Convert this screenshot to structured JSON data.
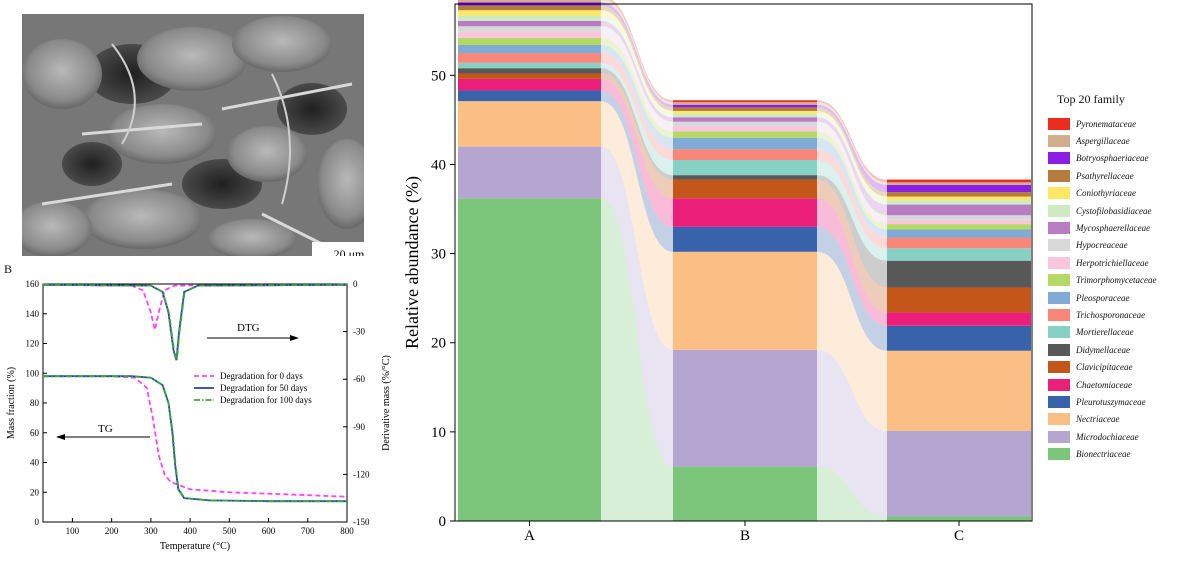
{
  "panel_b_tag": "B",
  "micrograph": {
    "scale_label": "20 μm"
  },
  "chart_data": [
    {
      "type": "line",
      "panel": "B",
      "xlabel": "Temperature (°C)",
      "ylabel": "Mass fraction (%)",
      "y2label": "Derivative mass (%/°C)",
      "xlim": [
        25,
        800
      ],
      "ylim": [
        0,
        160
      ],
      "y2lim": [
        -150,
        0
      ],
      "xticks": [
        100,
        200,
        300,
        400,
        500,
        600,
        700,
        800
      ],
      "yticks": [
        0,
        20,
        40,
        60,
        80,
        100,
        120,
        140,
        160
      ],
      "y2ticks": [
        0,
        -30,
        -60,
        -90,
        -120,
        -150
      ],
      "annotations": [
        {
          "text": "DTG",
          "arrow": "right"
        },
        {
          "text": "TG",
          "arrow": "left"
        }
      ],
      "legend_position": "center-right",
      "series": [
        {
          "name": "Degradation for 0 days",
          "color": "#ff44ff",
          "dash": "dashed",
          "tg": [
            [
              25,
              98
            ],
            [
              200,
              98
            ],
            [
              260,
              97
            ],
            [
              290,
              90
            ],
            [
              305,
              70
            ],
            [
              320,
              45
            ],
            [
              335,
              32
            ],
            [
              350,
              27
            ],
            [
              400,
              22
            ],
            [
              500,
              20
            ],
            [
              600,
              19
            ],
            [
              700,
              18
            ],
            [
              800,
              17
            ]
          ],
          "dtg": [
            [
              25,
              -0.5
            ],
            [
              250,
              -1
            ],
            [
              280,
              -4
            ],
            [
              300,
              -18
            ],
            [
              310,
              -29
            ],
            [
              320,
              -18
            ],
            [
              335,
              -4
            ],
            [
              360,
              -1
            ],
            [
              800,
              -0.5
            ]
          ]
        },
        {
          "name": "Degradation for 50 days",
          "color": "#2a3fb8",
          "dash": "solid",
          "tg": [
            [
              25,
              98
            ],
            [
              250,
              98
            ],
            [
              300,
              97
            ],
            [
              330,
              92
            ],
            [
              345,
              80
            ],
            [
              355,
              60
            ],
            [
              362,
              38
            ],
            [
              370,
              22
            ],
            [
              385,
              16
            ],
            [
              450,
              14.5
            ],
            [
              600,
              14
            ],
            [
              800,
              14
            ]
          ],
          "dtg": [
            [
              25,
              -0.5
            ],
            [
              300,
              -1
            ],
            [
              330,
              -5
            ],
            [
              345,
              -18
            ],
            [
              358,
              -42
            ],
            [
              365,
              -48
            ],
            [
              372,
              -30
            ],
            [
              385,
              -5
            ],
            [
              420,
              -1
            ],
            [
              800,
              -0.5
            ]
          ]
        },
        {
          "name": "Degradation for 100 days",
          "color": "#3aa63a",
          "dash": "dashdot",
          "tg": [
            [
              25,
              98
            ],
            [
              250,
              98
            ],
            [
              300,
              97
            ],
            [
              330,
              92
            ],
            [
              345,
              80
            ],
            [
              356,
              60
            ],
            [
              363,
              38
            ],
            [
              371,
              22
            ],
            [
              386,
              16
            ],
            [
              450,
              14.5
            ],
            [
              600,
              14
            ],
            [
              800,
              14
            ]
          ],
          "dtg": [
            [
              25,
              -0.5
            ],
            [
              300,
              -1
            ],
            [
              330,
              -5
            ],
            [
              346,
              -18
            ],
            [
              359,
              -42
            ],
            [
              366,
              -48
            ],
            [
              373,
              -30
            ],
            [
              386,
              -5
            ],
            [
              420,
              -1
            ],
            [
              800,
              -0.5
            ]
          ]
        }
      ]
    },
    {
      "type": "bar",
      "stacked": true,
      "ylabel": "Relative abundance (%)",
      "ylim": [
        0,
        58
      ],
      "yticks": [
        0,
        10,
        20,
        30,
        40,
        50
      ],
      "categories": [
        "A",
        "B",
        "C"
      ],
      "legend_title": "Top 20 family",
      "legend_position": "right",
      "series": [
        {
          "name": "Bionectriaceae",
          "color": "#7bc67b",
          "values": [
            36.2,
            6.1,
            0.5
          ]
        },
        {
          "name": "Microdochiaceae",
          "color": "#b5a5d1",
          "values": [
            5.8,
            13.1,
            9.6
          ]
        },
        {
          "name": "Nectriaceae",
          "color": "#fbbf85",
          "values": [
            5.1,
            11.0,
            9.0
          ]
        },
        {
          "name": "Pleurotuszymaceae",
          "color": "#3863ab",
          "values": [
            1.2,
            2.8,
            2.8
          ]
        },
        {
          "name": "Chaetomiaceae",
          "color": "#eb1e7a",
          "values": [
            1.3,
            3.2,
            1.5
          ]
        },
        {
          "name": "Clavicipitaceae",
          "color": "#c4561a",
          "values": [
            0.6,
            2.1,
            2.8
          ]
        },
        {
          "name": "Didymellaceae",
          "color": "#585858",
          "values": [
            0.6,
            0.5,
            3.0
          ]
        },
        {
          "name": "Mortierellaceae",
          "color": "#86d1c3",
          "values": [
            0.6,
            1.7,
            1.4
          ]
        },
        {
          "name": "Trichosporonaceae",
          "color": "#f88679",
          "values": [
            1.1,
            1.2,
            1.2
          ]
        },
        {
          "name": "Pleosporaceae",
          "color": "#7fabd6",
          "values": [
            0.9,
            1.3,
            0.9
          ]
        },
        {
          "name": "Trimorphomycetaceae",
          "color": "#b5d964",
          "values": [
            0.8,
            0.7,
            0.6
          ]
        },
        {
          "name": "Herpotrichiellaceae",
          "color": "#f9c6de",
          "values": [
            0.7,
            0.6,
            0.5
          ]
        },
        {
          "name": "Hypocreaceae",
          "color": "#d8d8d8",
          "values": [
            0.6,
            0.5,
            0.5
          ]
        },
        {
          "name": "Mycosphaerellaceae",
          "color": "#b87cc3",
          "values": [
            0.6,
            0.5,
            1.2
          ]
        },
        {
          "name": "Cystofilobasidiaceae",
          "color": "#cdeac3",
          "values": [
            0.6,
            0.4,
            0.5
          ]
        },
        {
          "name": "Coniothyriaceae",
          "color": "#fde866",
          "values": [
            0.6,
            0.3,
            0.4
          ]
        },
        {
          "name": "Psathyrellaceae",
          "color": "#b57b3b",
          "values": [
            0.5,
            0.4,
            0.5
          ]
        },
        {
          "name": "Botryosphaeriaceae",
          "color": "#8a1ee3",
          "values": [
            0.4,
            0.3,
            0.8
          ]
        },
        {
          "name": "Aspergillaceae",
          "color": "#d1ad8b",
          "values": [
            0.4,
            0.3,
            0.3
          ]
        },
        {
          "name": "Pyronemataceae",
          "color": "#ea2c1f",
          "values": [
            0.3,
            0.2,
            0.3
          ]
        }
      ]
    }
  ]
}
